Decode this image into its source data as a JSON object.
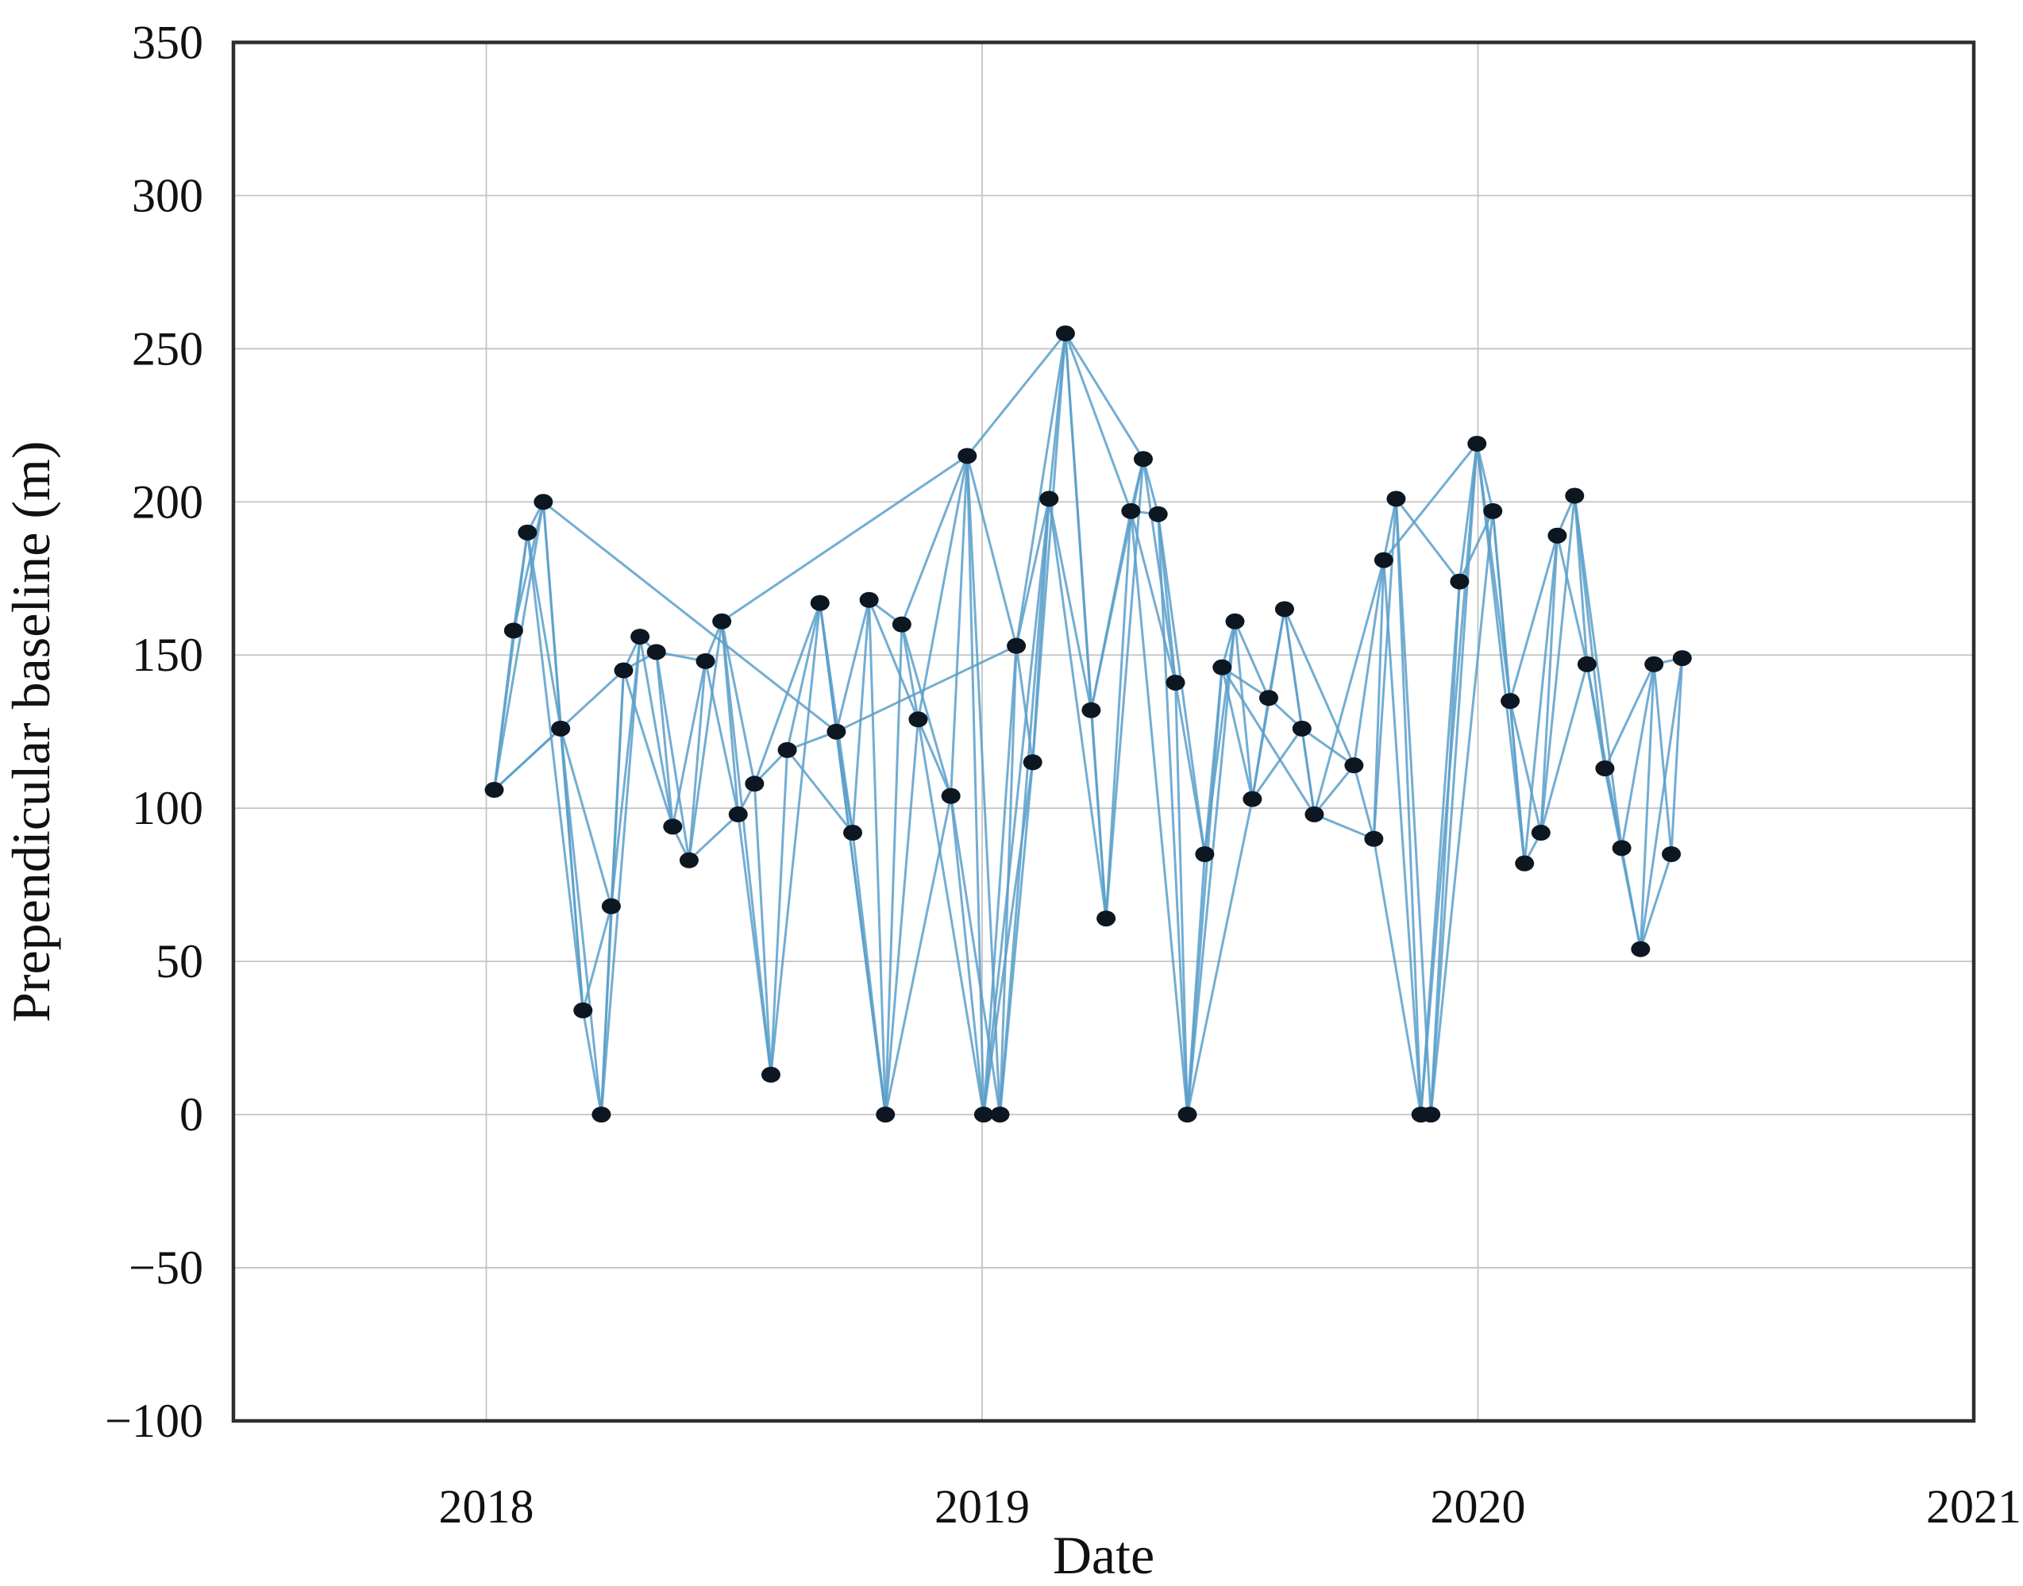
{
  "chart_data": {
    "type": "scatter",
    "subtype": "baseline-network",
    "title": "",
    "xlabel": "Date",
    "ylabel": "Prependicular baseline (m)",
    "xlim": [
      2017.49,
      2021.0
    ],
    "ylim": [
      -100,
      350
    ],
    "grid": true,
    "x_ticks": [
      2018,
      2019,
      2020,
      2021
    ],
    "x_tick_labels": [
      "2018",
      "2019",
      "2020",
      "2021"
    ],
    "y_ticks": [
      350,
      300,
      250,
      200,
      150,
      100,
      50,
      0,
      -50,
      -100
    ],
    "y_tick_labels": [
      "350",
      "300",
      "250",
      "200",
      "150",
      "100",
      "50",
      "0",
      "−50",
      "−100"
    ],
    "x_grid_values": [
      2018,
      2019,
      2020,
      2021
    ],
    "y_grid_values": [
      300,
      250,
      200,
      150,
      100,
      50,
      0,
      -50
    ],
    "colors": {
      "point": "#0c1722",
      "edge": "#5b9fca",
      "grid": "#c4c4c4",
      "frame": "#2e2e2e",
      "text": "#111111",
      "background": "#ffffff"
    },
    "points": [
      [
        2018.016,
        106
      ],
      [
        2018.055,
        158
      ],
      [
        2018.083,
        190
      ],
      [
        2018.115,
        200
      ],
      [
        2018.15,
        126
      ],
      [
        2018.195,
        34
      ],
      [
        2018.232,
        0
      ],
      [
        2018.252,
        68
      ],
      [
        2018.277,
        145
      ],
      [
        2018.31,
        156
      ],
      [
        2018.343,
        151
      ],
      [
        2018.376,
        94
      ],
      [
        2018.409,
        83
      ],
      [
        2018.442,
        148
      ],
      [
        2018.475,
        161
      ],
      [
        2018.508,
        98
      ],
      [
        2018.541,
        108
      ],
      [
        2018.574,
        13
      ],
      [
        2018.607,
        119
      ],
      [
        2018.673,
        167
      ],
      [
        2018.706,
        125
      ],
      [
        2018.739,
        92
      ],
      [
        2018.772,
        168
      ],
      [
        2018.805,
        0
      ],
      [
        2018.838,
        160
      ],
      [
        2018.871,
        129
      ],
      [
        2018.937,
        104
      ],
      [
        2018.97,
        215
      ],
      [
        2019.003,
        0
      ],
      [
        2019.036,
        0
      ],
      [
        2019.069,
        153
      ],
      [
        2019.102,
        115
      ],
      [
        2019.135,
        201
      ],
      [
        2019.168,
        255
      ],
      [
        2019.22,
        132
      ],
      [
        2019.25,
        64
      ],
      [
        2019.3,
        197
      ],
      [
        2019.325,
        214
      ],
      [
        2019.355,
        196
      ],
      [
        2019.39,
        141
      ],
      [
        2019.414,
        0
      ],
      [
        2019.449,
        85
      ],
      [
        2019.484,
        146
      ],
      [
        2019.51,
        161
      ],
      [
        2019.545,
        103
      ],
      [
        2019.578,
        136
      ],
      [
        2019.61,
        165
      ],
      [
        2019.645,
        126
      ],
      [
        2019.67,
        98
      ],
      [
        2019.75,
        114
      ],
      [
        2019.79,
        90
      ],
      [
        2019.81,
        181
      ],
      [
        2019.835,
        201
      ],
      [
        2019.885,
        0
      ],
      [
        2019.905,
        0
      ],
      [
        2019.963,
        174
      ],
      [
        2019.998,
        219
      ],
      [
        2020.03,
        197
      ],
      [
        2020.065,
        135
      ],
      [
        2020.094,
        82
      ],
      [
        2020.127,
        92
      ],
      [
        2020.16,
        189
      ],
      [
        2020.195,
        202
      ],
      [
        2020.22,
        147
      ],
      [
        2020.256,
        113
      ],
      [
        2020.29,
        87
      ],
      [
        2020.328,
        54
      ],
      [
        2020.355,
        147
      ],
      [
        2020.39,
        85
      ],
      [
        2020.412,
        149
      ]
    ],
    "edges": [
      [
        0,
        1
      ],
      [
        1,
        2
      ],
      [
        2,
        3
      ],
      [
        3,
        4
      ],
      [
        4,
        5
      ],
      [
        5,
        6
      ],
      [
        6,
        7
      ],
      [
        7,
        8
      ],
      [
        8,
        9
      ],
      [
        9,
        10
      ],
      [
        10,
        11
      ],
      [
        11,
        12
      ],
      [
        12,
        13
      ],
      [
        13,
        14
      ],
      [
        14,
        15
      ],
      [
        15,
        16
      ],
      [
        16,
        17
      ],
      [
        17,
        18
      ],
      [
        18,
        19
      ],
      [
        19,
        20
      ],
      [
        20,
        21
      ],
      [
        21,
        22
      ],
      [
        22,
        23
      ],
      [
        23,
        24
      ],
      [
        24,
        25
      ],
      [
        25,
        26
      ],
      [
        26,
        27
      ],
      [
        27,
        28
      ],
      [
        28,
        29
      ],
      [
        29,
        30
      ],
      [
        30,
        31
      ],
      [
        31,
        32
      ],
      [
        32,
        33
      ],
      [
        33,
        34
      ],
      [
        34,
        35
      ],
      [
        35,
        36
      ],
      [
        36,
        37
      ],
      [
        37,
        38
      ],
      [
        38,
        39
      ],
      [
        39,
        40
      ],
      [
        40,
        41
      ],
      [
        41,
        42
      ],
      [
        42,
        43
      ],
      [
        43,
        44
      ],
      [
        44,
        45
      ],
      [
        45,
        46
      ],
      [
        46,
        47
      ],
      [
        47,
        48
      ],
      [
        48,
        49
      ],
      [
        49,
        50
      ],
      [
        50,
        51
      ],
      [
        51,
        52
      ],
      [
        52,
        53
      ],
      [
        53,
        54
      ],
      [
        54,
        55
      ],
      [
        55,
        56
      ],
      [
        56,
        57
      ],
      [
        57,
        58
      ],
      [
        58,
        59
      ],
      [
        59,
        60
      ],
      [
        60,
        61
      ],
      [
        61,
        62
      ],
      [
        62,
        63
      ],
      [
        63,
        64
      ],
      [
        64,
        65
      ],
      [
        65,
        66
      ],
      [
        66,
        67
      ],
      [
        67,
        68
      ],
      [
        68,
        69
      ],
      [
        0,
        2
      ],
      [
        1,
        3
      ],
      [
        2,
        4
      ],
      [
        3,
        5
      ],
      [
        4,
        6
      ],
      [
        5,
        7
      ],
      [
        6,
        8
      ],
      [
        7,
        9
      ],
      [
        8,
        10
      ],
      [
        9,
        11
      ],
      [
        10,
        12
      ],
      [
        11,
        13
      ],
      [
        12,
        14
      ],
      [
        13,
        15
      ],
      [
        14,
        16
      ],
      [
        15,
        17
      ],
      [
        16,
        18
      ],
      [
        17,
        19
      ],
      [
        18,
        20
      ],
      [
        19,
        21
      ],
      [
        20,
        22
      ],
      [
        21,
        23
      ],
      [
        22,
        24
      ],
      [
        23,
        25
      ],
      [
        24,
        26
      ],
      [
        25,
        27
      ],
      [
        26,
        28
      ],
      [
        27,
        29
      ],
      [
        28,
        30
      ],
      [
        29,
        31
      ],
      [
        30,
        32
      ],
      [
        31,
        33
      ],
      [
        32,
        34
      ],
      [
        33,
        35
      ],
      [
        34,
        36
      ],
      [
        35,
        37
      ],
      [
        36,
        38
      ],
      [
        37,
        39
      ],
      [
        38,
        40
      ],
      [
        39,
        41
      ],
      [
        40,
        42
      ],
      [
        41,
        43
      ],
      [
        42,
        44
      ],
      [
        43,
        45
      ],
      [
        44,
        46
      ],
      [
        45,
        47
      ],
      [
        46,
        48
      ],
      [
        47,
        49
      ],
      [
        48,
        50
      ],
      [
        49,
        51
      ],
      [
        50,
        52
      ],
      [
        51,
        53
      ],
      [
        52,
        54
      ],
      [
        53,
        55
      ],
      [
        54,
        56
      ],
      [
        55,
        57
      ],
      [
        56,
        58
      ],
      [
        57,
        59
      ],
      [
        58,
        60
      ],
      [
        59,
        61
      ],
      [
        60,
        62
      ],
      [
        61,
        63
      ],
      [
        62,
        64
      ],
      [
        63,
        65
      ],
      [
        64,
        66
      ],
      [
        65,
        67
      ],
      [
        66,
        68
      ],
      [
        67,
        69
      ],
      [
        0,
        3
      ],
      [
        2,
        5
      ],
      [
        4,
        7
      ],
      [
        6,
        9
      ],
      [
        8,
        11
      ],
      [
        10,
        13
      ],
      [
        12,
        15
      ],
      [
        14,
        17
      ],
      [
        16,
        19
      ],
      [
        18,
        21
      ],
      [
        20,
        23
      ],
      [
        22,
        25
      ],
      [
        24,
        27
      ],
      [
        26,
        29
      ],
      [
        28,
        31
      ],
      [
        30,
        33
      ],
      [
        32,
        35
      ],
      [
        34,
        37
      ],
      [
        36,
        39
      ],
      [
        38,
        41
      ],
      [
        40,
        43
      ],
      [
        42,
        45
      ],
      [
        44,
        47
      ],
      [
        46,
        49
      ],
      [
        48,
        51
      ],
      [
        50,
        53
      ],
      [
        52,
        55
      ],
      [
        54,
        57
      ],
      [
        56,
        59
      ],
      [
        58,
        61
      ],
      [
        60,
        63
      ],
      [
        62,
        65
      ],
      [
        64,
        67
      ],
      [
        66,
        69
      ],
      [
        0,
        4
      ],
      [
        0,
        8
      ],
      [
        3,
        20
      ],
      [
        14,
        27
      ],
      [
        19,
        23
      ],
      [
        23,
        26
      ],
      [
        25,
        28
      ],
      [
        27,
        30
      ],
      [
        27,
        33
      ],
      [
        28,
        32
      ],
      [
        29,
        32
      ],
      [
        33,
        36
      ],
      [
        33,
        37
      ],
      [
        36,
        40
      ],
      [
        40,
        44
      ],
      [
        42,
        48
      ],
      [
        51,
        56
      ],
      [
        53,
        56
      ],
      [
        20,
        30
      ]
    ]
  }
}
